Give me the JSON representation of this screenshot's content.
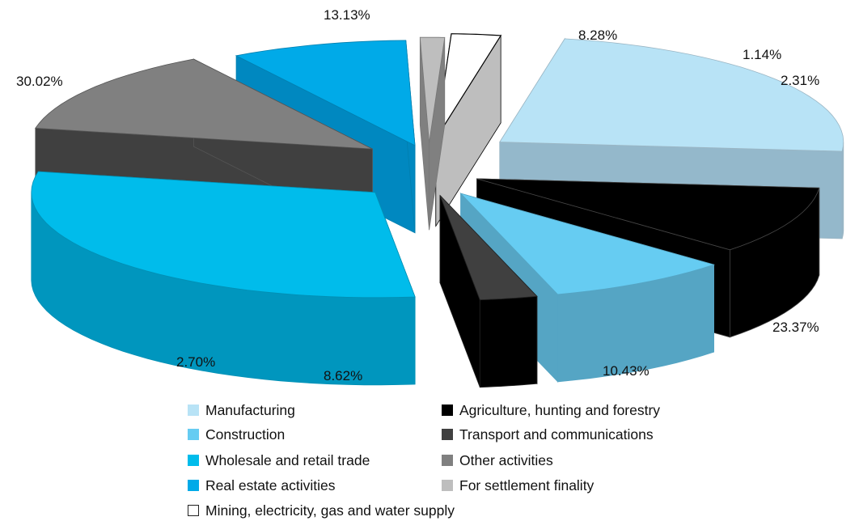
{
  "chart_data": {
    "type": "pie",
    "style": "3d-exploded",
    "slices": [
      {
        "label": "Manufacturing",
        "value": 23.37,
        "pct_label": "23.37%",
        "color": "#B8E3F6",
        "side": "#94B8CB",
        "line": "#9BB6C4"
      },
      {
        "label": "Agriculture, hunting and forestry",
        "value": 10.43,
        "pct_label": "10.43%",
        "color": "#000000",
        "side": "#000000",
        "line": "#444444"
      },
      {
        "label": "Construction",
        "value": 8.62,
        "pct_label": "8.62%",
        "color": "#66CCF2",
        "side": "#55A5C4",
        "line": "#55A5C4"
      },
      {
        "label": "Transport and communications",
        "value": 2.7,
        "pct_label": "2.70%",
        "color": "#404040",
        "side": "#000000",
        "line": "#222222"
      },
      {
        "label": "Wholesale and retail trade",
        "value": 30.02,
        "pct_label": "30.02%",
        "color": "#00BCEB",
        "side": "#0096BE",
        "line": "#0090B5"
      },
      {
        "label": "Other activities",
        "value": 13.13,
        "pct_label": "13.13%",
        "color": "#808080",
        "side": "#404040",
        "line": "#555555"
      },
      {
        "label": "Real estate activities",
        "value": 8.28,
        "pct_label": "8.28%",
        "color": "#00AAE8",
        "side": "#0088C0",
        "line": "#007FAF"
      },
      {
        "label": "For settlement finality",
        "value": 1.14,
        "pct_label": "1.14%",
        "color": "#BEBEBE",
        "side": "#808080",
        "line": "#777777"
      },
      {
        "label": "Mining, electricity, gas and water supply",
        "value": 2.31,
        "pct_label": "2.31%",
        "color": "#FFFFFF",
        "side": "#BEBEBE",
        "line": "#000000"
      }
    ]
  },
  "legend": {
    "items": [
      {
        "label": "Manufacturing",
        "color": "#B8E3F6"
      },
      {
        "label": "Agriculture, hunting and forestry",
        "color": "#000000"
      },
      {
        "label": "Construction",
        "color": "#66CCF2"
      },
      {
        "label": "Transport and communications",
        "color": "#404040"
      },
      {
        "label": "Wholesale and retail trade",
        "color": "#00BCEB"
      },
      {
        "label": "Other activities",
        "color": "#808080"
      },
      {
        "label": "Real estate activities",
        "color": "#00AAE8"
      },
      {
        "label": "For settlement finality",
        "color": "#BEBEBE"
      },
      {
        "label": "Mining, electricity, gas and water supply",
        "color": "#FFFFFF"
      }
    ]
  }
}
